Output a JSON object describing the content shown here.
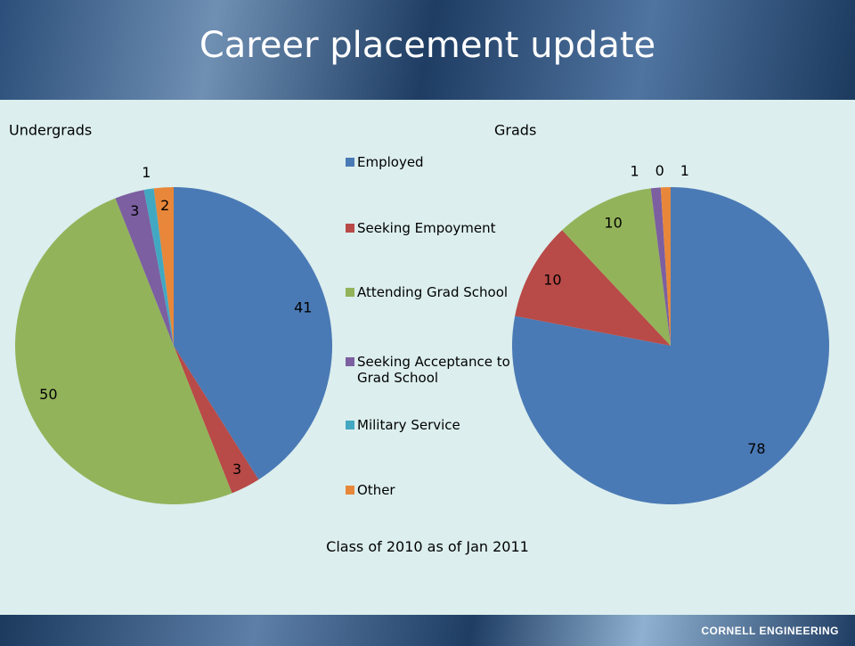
{
  "title": "Career placement update",
  "legend": {
    "categories": [
      "Employed",
      "Seeking Empoyment",
      "Attending Grad School",
      "Seeking Acceptance to Grad School",
      "Military Service",
      "Other"
    ],
    "colors": [
      "#4a7ab5",
      "#b84a47",
      "#93b35a",
      "#7c5fa0",
      "#42a8c2",
      "#e8873a"
    ]
  },
  "chart_data": [
    {
      "type": "pie",
      "title": "Undergrads",
      "values": [
        41,
        3,
        50,
        3,
        1,
        2
      ]
    },
    {
      "type": "pie",
      "title": "Grads",
      "values": [
        78,
        10,
        10,
        1,
        0,
        1
      ]
    }
  ],
  "caption": "Class of 2010 as of Jan 2011",
  "footer": "CORNELL ENGINEERING"
}
